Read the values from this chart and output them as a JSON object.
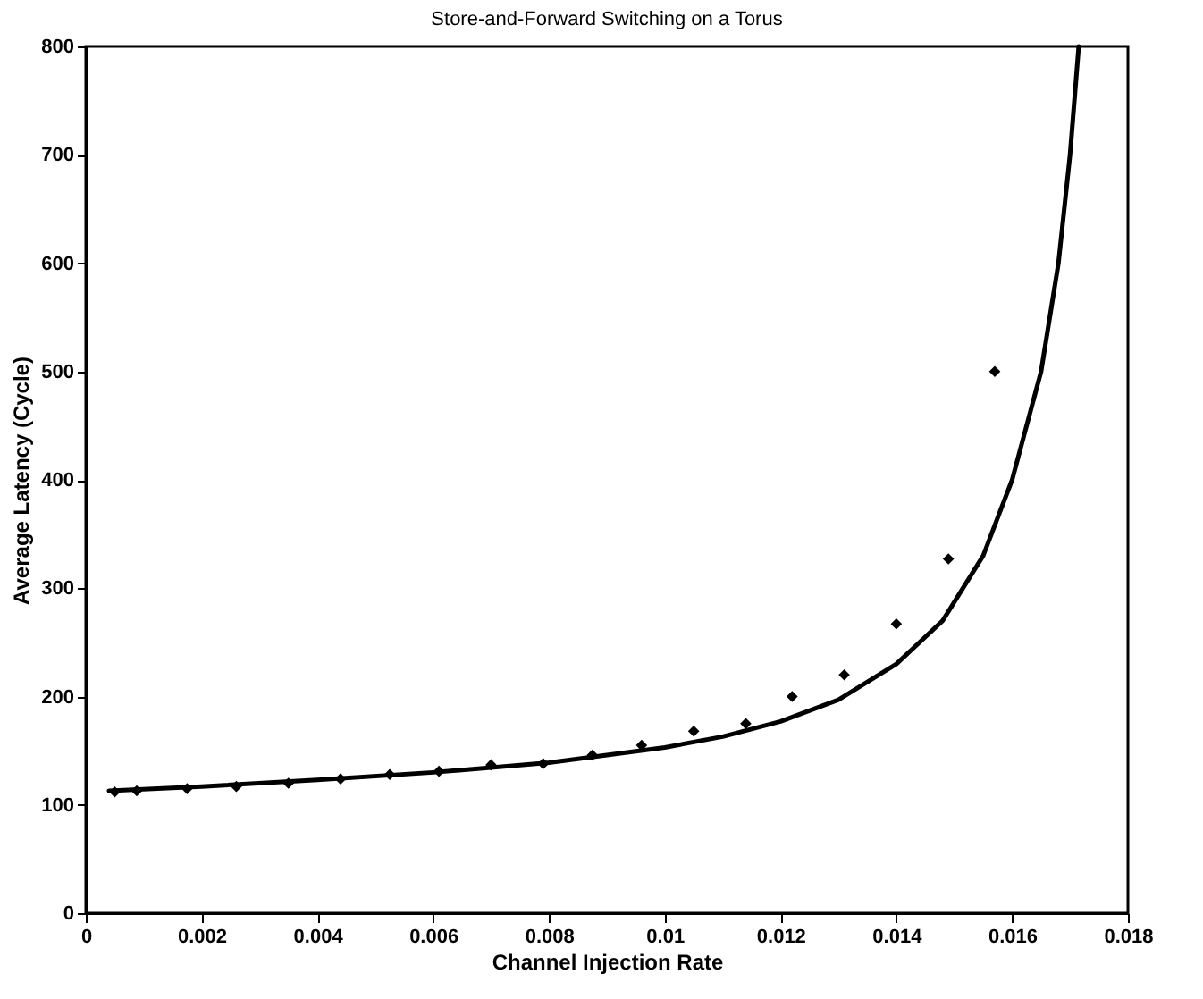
{
  "chart_data": {
    "type": "scatter",
    "title": "Store-and-Forward Switching on a Torus",
    "xlabel": "Channel Injection Rate",
    "ylabel": "Average Latency (Cycle)",
    "xlim": [
      0,
      0.018
    ],
    "xticks": [
      0,
      0.002,
      0.004,
      0.006,
      0.008,
      0.01,
      0.012,
      0.014,
      0.016,
      0.018
    ],
    "ylim": [
      0,
      800
    ],
    "yticks": [
      0,
      100,
      200,
      300,
      400,
      500,
      600,
      700,
      800
    ],
    "grid": false,
    "series": [
      {
        "marker": "diamond",
        "color": "#000000",
        "x": [
          0.0005,
          0.00088,
          0.00175,
          0.0026,
          0.0035,
          0.0044,
          0.00525,
          0.0061,
          0.007,
          0.0079,
          0.00875,
          0.0096,
          0.0105,
          0.0114,
          0.0122,
          0.0131,
          0.014,
          0.0149,
          0.0157
        ],
        "values": [
          112,
          113,
          115,
          117,
          120,
          124,
          128,
          131,
          137,
          138,
          146,
          155,
          168,
          175,
          200,
          220,
          267,
          327,
          500
        ]
      },
      {
        "type": "line",
        "color": "#000000",
        "line_style": "solid",
        "x": [
          0.0004,
          0.002,
          0.004,
          0.006,
          0.008,
          0.01,
          0.011,
          0.012,
          0.013,
          0.014,
          0.0148,
          0.0155,
          0.016,
          0.0165,
          0.0168,
          0.017,
          0.01715
        ],
        "values": [
          113,
          117,
          123,
          130,
          139,
          153,
          163,
          177,
          197,
          230,
          270,
          330,
          400,
          500,
          600,
          700,
          800
        ]
      }
    ]
  }
}
